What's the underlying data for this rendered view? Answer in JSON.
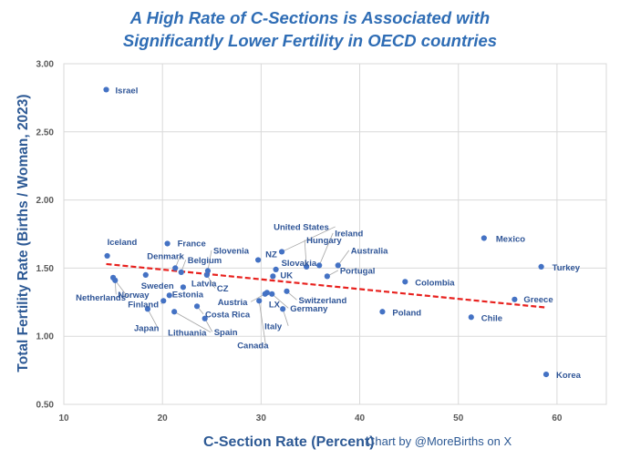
{
  "chart_data": {
    "type": "scatter",
    "title": "A High Rate of C-Sections is Associated with",
    "subtitle": "Significantly Lower Fertility in OECD countries",
    "xlabel": "C-Section Rate (Percent)",
    "ylabel": "Total Fertility Rate (Births / Woman, 2023)",
    "credit": "Chart by @MoreBirths on X",
    "xlim": [
      10,
      65
    ],
    "ylim": [
      0.5,
      3.0
    ],
    "xticks": [
      10,
      20,
      30,
      40,
      50,
      60
    ],
    "xtick_labels": [
      "10",
      "20",
      "30",
      "40",
      "50",
      "60"
    ],
    "yticks": [
      0.5,
      1.0,
      1.5,
      2.0,
      2.5,
      3.0
    ],
    "ytick_labels": [
      "0.50",
      "1.00",
      "1.50",
      "2.00",
      "2.50",
      "3.00"
    ],
    "grid": true,
    "legend": "none",
    "marker_color": "#4472c4",
    "trendline": {
      "style": "dashed",
      "color": "#e8211e",
      "x": [
        14.3,
        59.0
      ],
      "y": [
        1.53,
        1.21
      ]
    },
    "points": [
      {
        "label": "Israel",
        "x": 14.3,
        "y": 2.81
      },
      {
        "label": "Mexico",
        "x": 52.6,
        "y": 1.72
      },
      {
        "label": "Turkey",
        "x": 58.4,
        "y": 1.51
      },
      {
        "label": "Korea",
        "x": 58.9,
        "y": 0.72
      },
      {
        "label": "Chile",
        "x": 51.3,
        "y": 1.14
      },
      {
        "label": "Greece",
        "x": 55.7,
        "y": 1.27
      },
      {
        "label": "Colombia",
        "x": 44.6,
        "y": 1.4
      },
      {
        "label": "Poland",
        "x": 42.3,
        "y": 1.18
      },
      {
        "label": "Portugal",
        "x": 36.7,
        "y": 1.44
      },
      {
        "label": "Australia",
        "x": 37.8,
        "y": 1.52
      },
      {
        "label": "Ireland",
        "x": 35.9,
        "y": 1.52
      },
      {
        "label": "Hungary",
        "x": 34.6,
        "y": 1.51
      },
      {
        "label": "United States",
        "x": 32.1,
        "y": 1.62
      },
      {
        "label": "Slovakia",
        "x": 31.5,
        "y": 1.49
      },
      {
        "label": "UK",
        "x": 31.2,
        "y": 1.44
      },
      {
        "label": "NZ",
        "x": 29.7,
        "y": 1.56
      },
      {
        "label": "Switzerland",
        "x": 32.6,
        "y": 1.33
      },
      {
        "label": "Germany",
        "x": 31.1,
        "y": 1.31
      },
      {
        "label": "Italy",
        "x": 32.2,
        "y": 1.2
      },
      {
        "label": "LX",
        "x": 30.6,
        "y": 1.32
      },
      {
        "label": "Austria",
        "x": 30.4,
        "y": 1.31
      },
      {
        "label": "Canada",
        "x": 29.8,
        "y": 1.26
      },
      {
        "label": "CZ",
        "x": 24.5,
        "y": 1.45
      },
      {
        "label": "Latvia",
        "x": 22.1,
        "y": 1.36
      },
      {
        "label": "Belgium",
        "x": 21.9,
        "y": 1.47
      },
      {
        "label": "Slovenia",
        "x": 24.6,
        "y": 1.48
      },
      {
        "label": "France",
        "x": 20.5,
        "y": 1.68
      },
      {
        "label": "Denmark",
        "x": 21.3,
        "y": 1.5
      },
      {
        "label": "Iceland",
        "x": 14.4,
        "y": 1.59
      },
      {
        "label": "Sweden",
        "x": 18.3,
        "y": 1.45
      },
      {
        "label": "Norway",
        "x": 15.2,
        "y": 1.41
      },
      {
        "label": "Netherlands",
        "x": 15.0,
        "y": 1.43
      },
      {
        "label": "Finland",
        "x": 20.1,
        "y": 1.26
      },
      {
        "label": "Estonia",
        "x": 20.7,
        "y": 1.3
      },
      {
        "label": "Japan",
        "x": 18.5,
        "y": 1.2
      },
      {
        "label": "Lithuania",
        "x": 21.2,
        "y": 1.18
      },
      {
        "label": "Costa Rica",
        "x": 23.5,
        "y": 1.22
      },
      {
        "label": "Spain",
        "x": 24.3,
        "y": 1.13
      }
    ]
  }
}
